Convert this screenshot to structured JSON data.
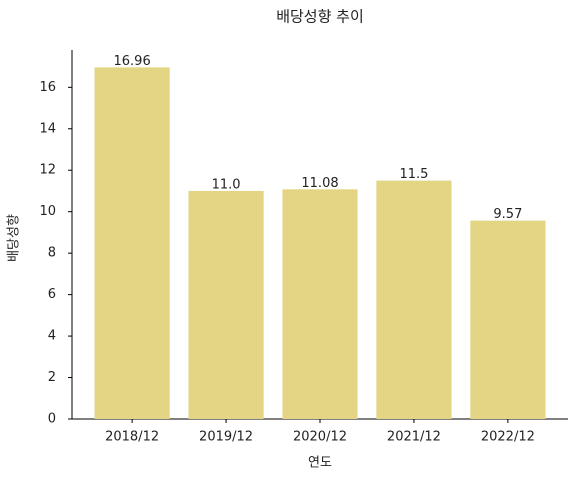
{
  "chart_data": {
    "type": "bar",
    "title": "배당성향 추이",
    "x_label": "연도",
    "y_label": "배당성향",
    "categories": [
      "2018/12",
      "2019/12",
      "2020/12",
      "2021/12",
      "2022/12"
    ],
    "values": [
      16.96,
      11.0,
      11.08,
      11.5,
      9.57
    ],
    "value_labels": [
      "16.96",
      "11.0",
      "11.08",
      "11.5",
      "9.57"
    ],
    "color": "#e3d584",
    "ylim": [
      0,
      17.8
    ],
    "yticks": [
      0,
      2,
      4,
      6,
      8,
      10,
      12,
      14,
      16
    ],
    "grid": false
  }
}
